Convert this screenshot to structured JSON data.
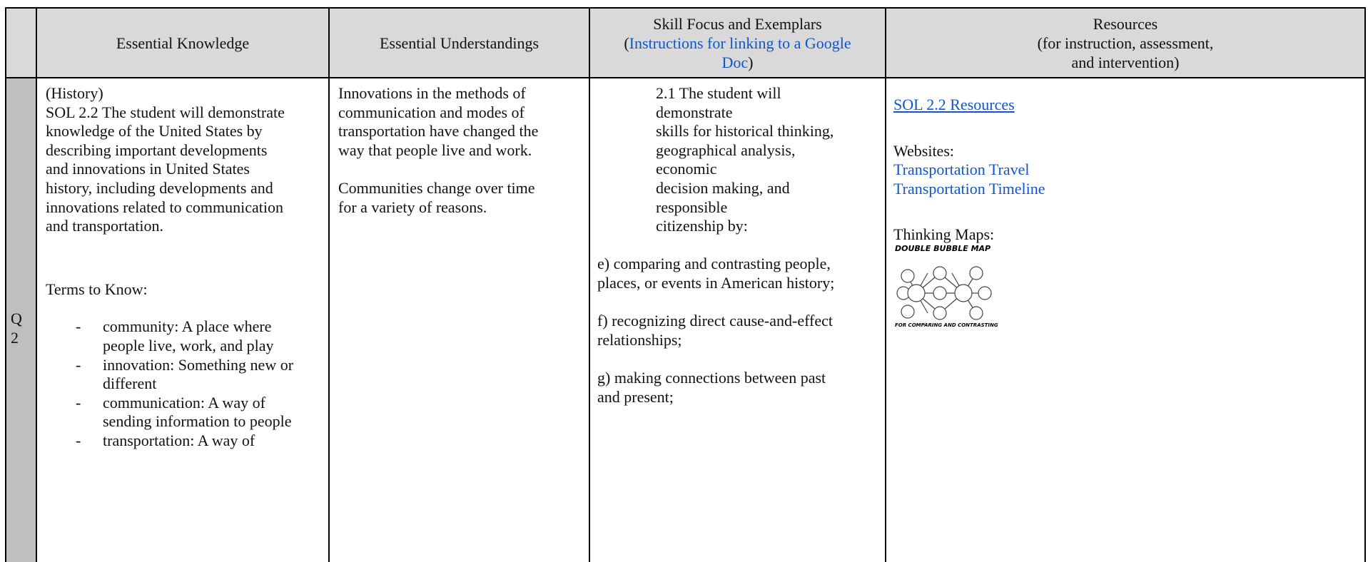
{
  "table": {
    "header": {
      "knowledge": "Essential Knowledge",
      "understandings": "Essential Understandings",
      "skills": {
        "title": "Skill Focus and Exemplars",
        "open": "(",
        "link": "Instructions for linking to a Google Doc",
        "close": ")"
      },
      "resources": {
        "title": "Resources",
        "subtitle_lines": [
          "(for instruction, assessment,",
          "and intervention)"
        ]
      }
    },
    "row": {
      "quarter": [
        "Q",
        "2"
      ],
      "knowledge": {
        "heading": "(History)",
        "standard_lines": [
          "SOL 2.2 The student will demonstrate",
          "knowledge of the United States by",
          "describing important developments",
          "and innovations in United States",
          "history, including developments and",
          "innovations related to communication",
          "and transportation."
        ],
        "terms_title": "Terms to Know:",
        "bullet": "-",
        "terms": [
          [
            "community: A place where",
            "people live, work, and play"
          ],
          [
            "innovation: Something new or",
            "different"
          ],
          [
            "communication: A way of",
            "sending information to people"
          ],
          [
            "transportation: A way of"
          ]
        ]
      },
      "understandings": [
        [
          "Innovations in the methods of",
          "communication and modes of",
          "transportation have changed the",
          "way that people live and work."
        ],
        [
          "Communities change over time",
          "for a variety of reasons."
        ]
      ],
      "skills": {
        "intro_lines": [
          "2.1 The student will",
          "demonstrate",
          "skills for historical thinking,",
          "geographical analysis,",
          "economic",
          "decision making, and",
          "responsible",
          "citizenship by:"
        ],
        "items": [
          [
            "e)  comparing and contrasting people,",
            "places, or events in American history;"
          ],
          [
            "f)  recognizing direct cause-and-effect",
            "relationships;"
          ],
          [
            "g)  making connections between past",
            "and present;"
          ]
        ]
      },
      "resources": {
        "link": "SOL 2.2 Resources",
        "websites_title": "Websites:",
        "websites": [
          "Transportation Travel",
          "Transportation Timeline"
        ],
        "maps_title": "Thinking Maps:",
        "map_title": "DOUBLE BUBBLE MAP",
        "map_caption": "FOR COMPARING AND CONTRASTING"
      }
    }
  }
}
